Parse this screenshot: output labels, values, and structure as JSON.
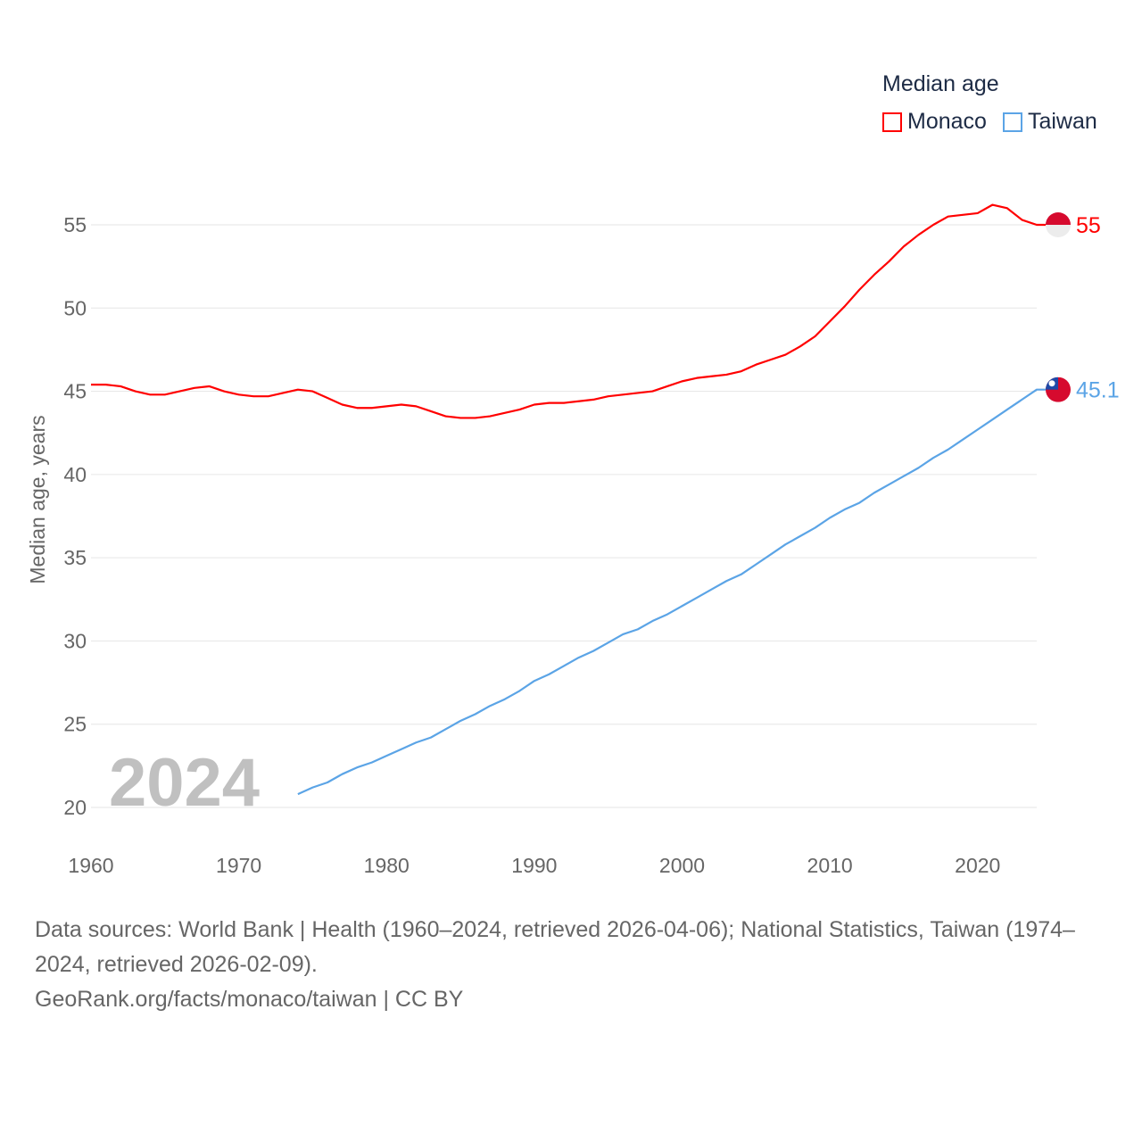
{
  "chart_data": {
    "type": "line",
    "title": "Median age",
    "xlabel": "",
    "ylabel": "Median age, years",
    "xlim": [
      1960,
      2024
    ],
    "ylim": [
      20,
      55
    ],
    "x_ticks": [
      1960,
      1970,
      1980,
      1990,
      2000,
      2010,
      2020
    ],
    "y_ticks": [
      20,
      25,
      30,
      35,
      40,
      45,
      50,
      55
    ],
    "grid": true,
    "legend_placement": "top-right",
    "watermark_year": "2024",
    "series": [
      {
        "name": "Monaco",
        "color": "#ff0000",
        "end_label": "55",
        "start_year": 1960,
        "values": [
          45.4,
          45.4,
          45.3,
          45.0,
          44.8,
          44.8,
          45.0,
          45.2,
          45.3,
          45.0,
          44.8,
          44.7,
          44.7,
          44.9,
          45.1,
          45.0,
          44.6,
          44.2,
          44.0,
          44.0,
          44.1,
          44.2,
          44.1,
          43.8,
          43.5,
          43.4,
          43.4,
          43.5,
          43.7,
          43.9,
          44.2,
          44.3,
          44.3,
          44.4,
          44.5,
          44.7,
          44.8,
          44.9,
          45.0,
          45.3,
          45.6,
          45.8,
          45.9,
          46.0,
          46.2,
          46.6,
          46.9,
          47.2,
          47.7,
          48.3,
          49.2,
          50.1,
          51.1,
          52.0,
          52.8,
          53.7,
          54.4,
          55.0,
          55.5,
          55.6,
          55.7,
          56.2,
          56.0,
          55.3,
          55.0
        ]
      },
      {
        "name": "Taiwan",
        "color": "#5ba4e6",
        "end_label": "45.1",
        "start_year": 1974,
        "values": [
          20.8,
          21.2,
          21.5,
          22.0,
          22.4,
          22.7,
          23.1,
          23.5,
          23.9,
          24.2,
          24.7,
          25.2,
          25.6,
          26.1,
          26.5,
          27.0,
          27.6,
          28.0,
          28.5,
          29.0,
          29.4,
          29.9,
          30.4,
          30.7,
          31.2,
          31.6,
          32.1,
          32.6,
          33.1,
          33.6,
          34.0,
          34.6,
          35.2,
          35.8,
          36.3,
          36.8,
          37.4,
          37.9,
          38.3,
          38.9,
          39.4,
          39.9,
          40.4,
          41.0,
          41.5,
          42.1,
          42.7,
          43.3,
          43.9,
          44.5,
          45.1
        ]
      }
    ]
  },
  "footer": {
    "sources": "Data sources: World Bank | Health (1960–2024, retrieved 2026-04-06); National Statistics, Taiwan (1974–2024, retrieved 2026-02-09).",
    "credit": "GeoRank.org/facts/monaco/taiwan | CC BY"
  }
}
